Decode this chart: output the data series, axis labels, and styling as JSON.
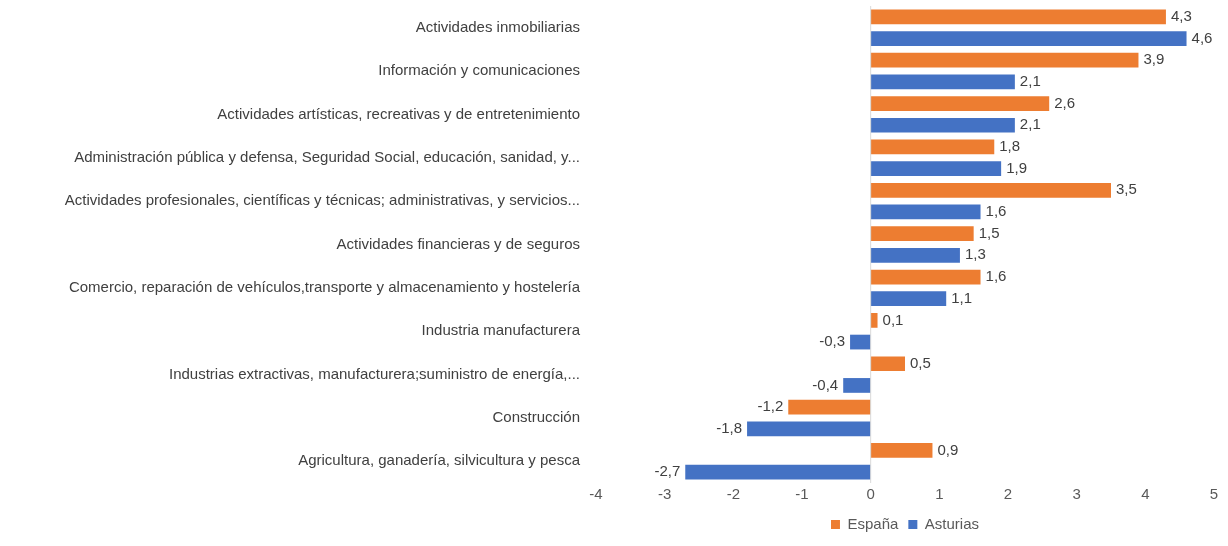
{
  "chart_data": {
    "type": "bar",
    "orientation": "horizontal",
    "categories": [
      "Actividades inmobiliarias",
      "Información y comunicaciones",
      "Actividades artísticas, recreativas y de entretenimiento",
      "Administración pública y defensa, Seguridad Social, educación, sanidad, y...",
      "Actividades profesionales, científicas y técnicas; administrativas, y servicios...",
      "Actividades financieras y de seguros",
      "Comercio, reparación de vehículos,transporte y almacenamiento y hostelería",
      "Industria manufacturera",
      "Industrias extractivas, manufacturera;suministro de energía,...",
      "Construcción",
      "Agricultura, ganadería, silvicultura y pesca"
    ],
    "series": [
      {
        "name": "España",
        "color": "#ed7d31",
        "values": [
          4.3,
          3.9,
          2.6,
          1.8,
          3.5,
          1.5,
          1.6,
          0.1,
          0.5,
          -1.2,
          0.9
        ],
        "value_labels": [
          "4,3",
          "3,9",
          "2,6",
          "1,8",
          "3,5",
          "1,5",
          "1,6",
          "0,1",
          "0,5",
          "-1,2",
          "0,9"
        ]
      },
      {
        "name": "Asturias",
        "color": "#4472c4",
        "values": [
          4.6,
          2.1,
          2.1,
          1.9,
          1.6,
          1.3,
          1.1,
          -0.3,
          -0.4,
          -1.8,
          -2.7
        ],
        "value_labels": [
          "4,6",
          "2,1",
          "2,1",
          "1,9",
          "1,6",
          "1,3",
          "1,1",
          "-0,3",
          "-0,4",
          "-1,8",
          "-2,7"
        ]
      }
    ],
    "xlim": [
      -4,
      5
    ],
    "xticks": [
      -4,
      -3,
      -2,
      -1,
      0,
      1,
      2,
      3,
      4,
      5
    ],
    "grid": false,
    "legend": "bottom",
    "ref_lines": [
      {
        "axis": "x",
        "value": 0,
        "color": "#d9d9d9"
      }
    ]
  }
}
